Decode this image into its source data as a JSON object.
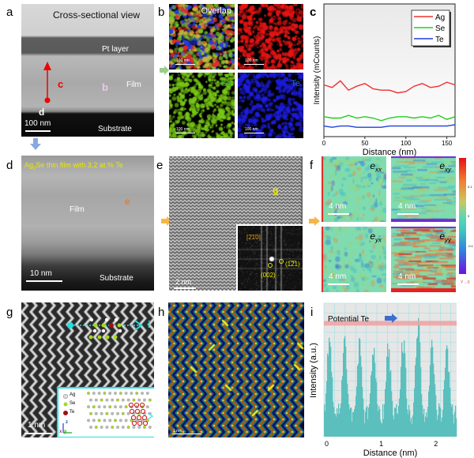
{
  "panels": {
    "a": {
      "label": "a",
      "title": "Cross-sectional view",
      "pt_layer": "Pt layer",
      "film": "Film",
      "substrate": "Substrate",
      "marker_c": "c",
      "marker_b": "b",
      "marker_d": "d",
      "scale": "100 nm"
    },
    "b": {
      "label": "b",
      "tiles": [
        {
          "title": "Overlap",
          "scale": "100 nm",
          "color": "#ffffff"
        },
        {
          "title": "Ag",
          "scale": "100 nm",
          "color": "#e00000"
        },
        {
          "title": "Se",
          "scale": "100 nm",
          "color": "#1faa3c"
        },
        {
          "title": "Te",
          "scale": "100 nm",
          "color": "#1b6fd8"
        }
      ]
    },
    "c": {
      "label": "c"
    },
    "d": {
      "label": "d",
      "title_pre": "Ag",
      "title_sub": "2",
      "title_post": "Se thin film with 3.2 at.% Te",
      "film": "Film",
      "marker_e": "e",
      "substrate": "Substrate",
      "scale": "10 nm"
    },
    "e": {
      "label": "e",
      "marker_g": "g",
      "scale": "2 nm",
      "zone_axis": "[2̄1̄0]",
      "spot1": "(1̅2̅1)",
      "spot2": "(002)"
    },
    "f": {
      "label": "f",
      "maps": [
        {
          "name": "e",
          "sub": "xx",
          "scale": "4 nm"
        },
        {
          "name": "e",
          "sub": "xy",
          "scale": "4 nm"
        },
        {
          "name": "e",
          "sub": "yx",
          "scale": "4 nm"
        },
        {
          "name": "e",
          "sub": "yy",
          "scale": "4 nm"
        }
      ],
      "colorbar_ticks": [
        "0.1",
        "0",
        "-0.1"
      ],
      "axes_glyph": "Y→X"
    },
    "g": {
      "label": "g",
      "marker_i": "i",
      "scale": "1 nm",
      "legend": [
        "Ag",
        "Se",
        "Te"
      ],
      "axis_z": "z",
      "axis_x": "x",
      "axis_y": "y"
    },
    "h": {
      "label": "h",
      "scale": "1 nm"
    },
    "i": {
      "label": "i"
    }
  },
  "colors": {
    "ag": "#f03030",
    "se": "#1ed01e",
    "te": "#1f3fe0",
    "hist": "#5bbfbd",
    "band": "#f0a0a0",
    "accent_arrow": "#f4b646"
  },
  "chart_data": [
    {
      "type": "line",
      "panel": "c",
      "xlabel": "Distance (nm)",
      "ylabel": "Intensity (mCounts)",
      "xlim": [
        0,
        160
      ],
      "ylim": [
        0,
        100
      ],
      "xticks": [
        0,
        50,
        100,
        150
      ],
      "legend_position": "top-right",
      "x": [
        0,
        10,
        20,
        30,
        40,
        50,
        60,
        70,
        80,
        90,
        100,
        110,
        120,
        130,
        140,
        150,
        160
      ],
      "series": [
        {
          "name": "Ag",
          "color": "#f03030",
          "values": [
            39,
            37,
            42,
            35,
            38,
            40,
            36,
            35,
            35,
            33,
            34,
            38,
            40,
            37,
            38,
            41,
            39
          ]
        },
        {
          "name": "Se",
          "color": "#1ed01e",
          "values": [
            15,
            14,
            14,
            16,
            14,
            15,
            14,
            12,
            14,
            15,
            15,
            14,
            15,
            14,
            16,
            13,
            15
          ]
        },
        {
          "name": "Te",
          "color": "#1f3fe0",
          "values": [
            8,
            7,
            8,
            8,
            7,
            7,
            7,
            7,
            8,
            8,
            8,
            8,
            8,
            8,
            8,
            8,
            9
          ]
        }
      ]
    },
    {
      "type": "bar",
      "panel": "i",
      "xlabel": "Distance (nm)",
      "ylabel": "Intensity (a.u.)",
      "xlim": [
        -0.05,
        2.38
      ],
      "ylim": [
        0,
        100
      ],
      "xticks": [
        0,
        1,
        2
      ],
      "grid": true,
      "annotation": "Potential Te",
      "band_level": 85,
      "peaks_x": [
        0.05,
        0.33,
        0.6,
        0.86,
        1.13,
        1.4,
        1.67,
        1.93,
        2.2
      ],
      "peaks_y": [
        83,
        80,
        75,
        77,
        74,
        81,
        97,
        80,
        74
      ],
      "baseline": 18
    }
  ]
}
